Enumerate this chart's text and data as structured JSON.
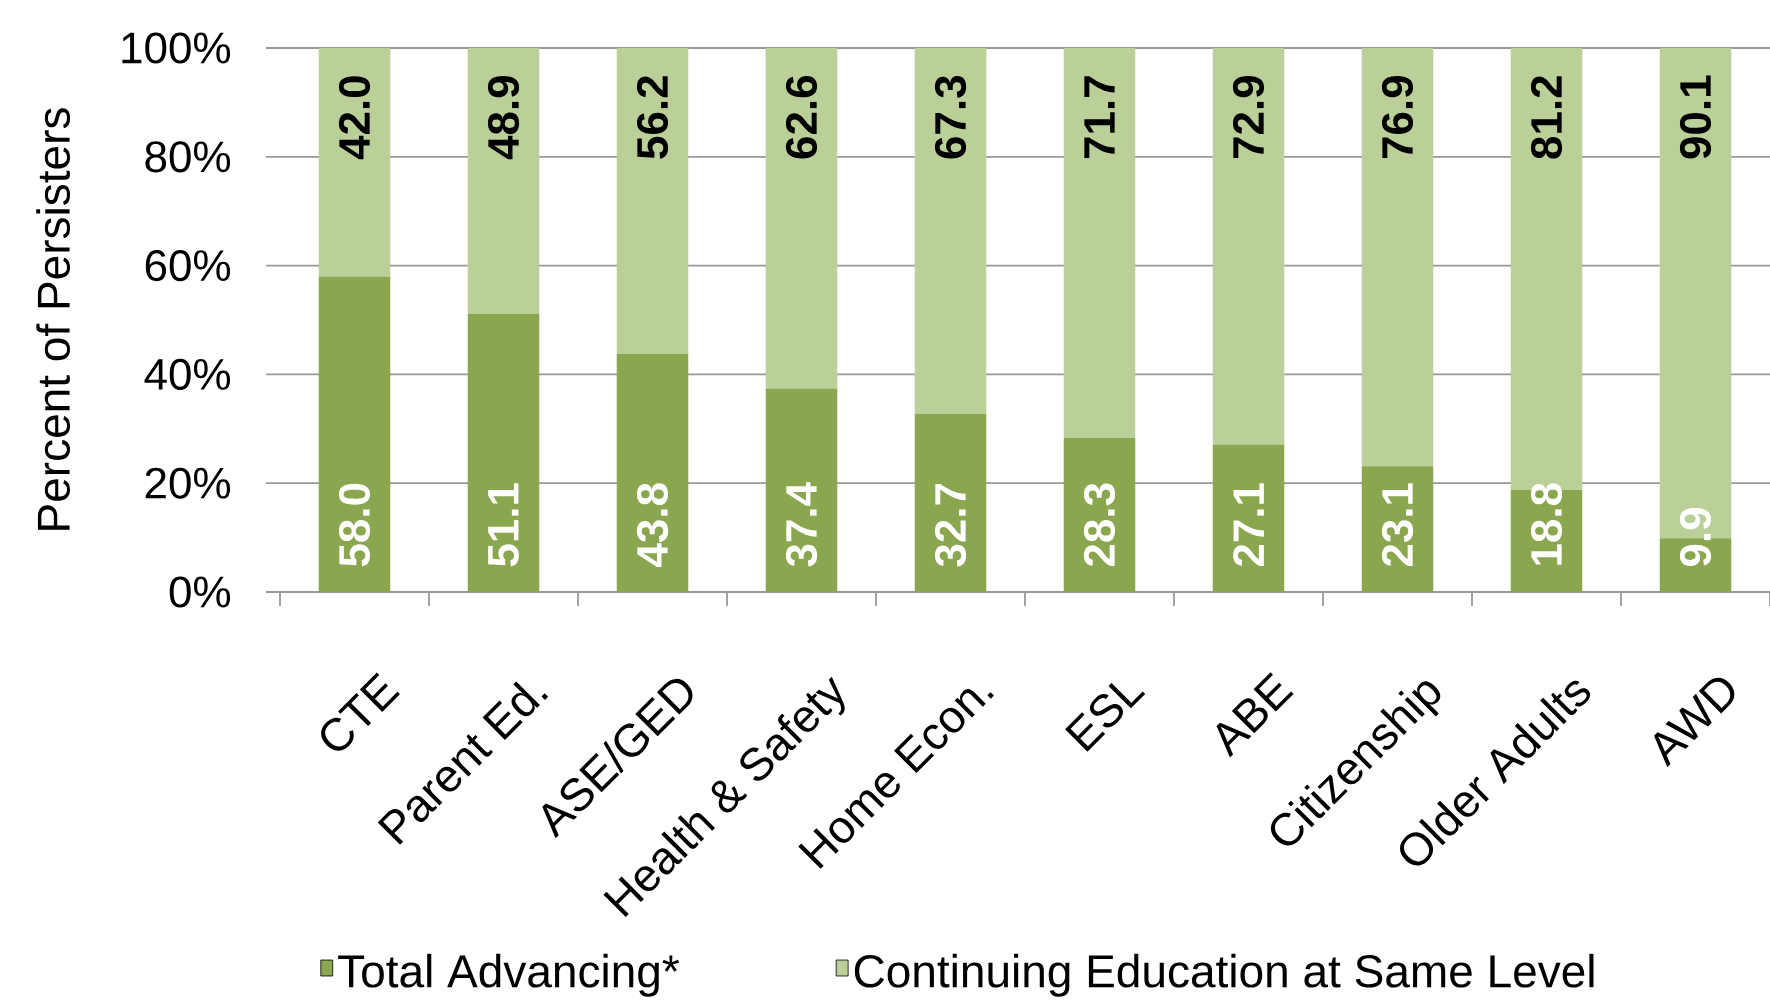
{
  "chart_data": {
    "type": "bar",
    "stacked": true,
    "ylabel": "Percent of Persisters",
    "categories": [
      "CTE",
      "Parent Ed.",
      "ASE/GED",
      "Health & Safety",
      "Home Econ.",
      "ESL",
      "ABE",
      "Citizenship",
      "Older Adults",
      "AWD"
    ],
    "series": [
      {
        "name": "Total Advancing*",
        "color": "#8aa64f",
        "values": [
          58.0,
          51.1,
          43.8,
          37.4,
          32.7,
          28.3,
          27.1,
          23.1,
          18.8,
          9.9
        ],
        "value_labels": [
          "58.0",
          "51.1",
          "43.8",
          "37.4",
          "32.7",
          "28.3",
          "27.1",
          "23.1",
          "18.8",
          "9.9"
        ]
      },
      {
        "name": "Continuing Education at Same Level",
        "color": "#bbcf98",
        "values": [
          42.0,
          48.9,
          56.2,
          62.6,
          67.3,
          71.7,
          72.9,
          76.9,
          81.2,
          90.1
        ],
        "value_labels": [
          "42.0",
          "48.9",
          "56.2",
          "62.6",
          "67.3",
          "71.7",
          "72.9",
          "76.9",
          "81.2",
          "90.1"
        ]
      }
    ],
    "ylim": [
      0,
      100
    ],
    "yticks": [
      {
        "value": 0,
        "label": "0%"
      },
      {
        "value": 20,
        "label": "20%"
      },
      {
        "value": 40,
        "label": "40%"
      },
      {
        "value": 60,
        "label": "60%"
      },
      {
        "value": 80,
        "label": "80%"
      },
      {
        "value": 100,
        "label": "100%"
      }
    ],
    "grid": "y",
    "legend": "bottom"
  }
}
